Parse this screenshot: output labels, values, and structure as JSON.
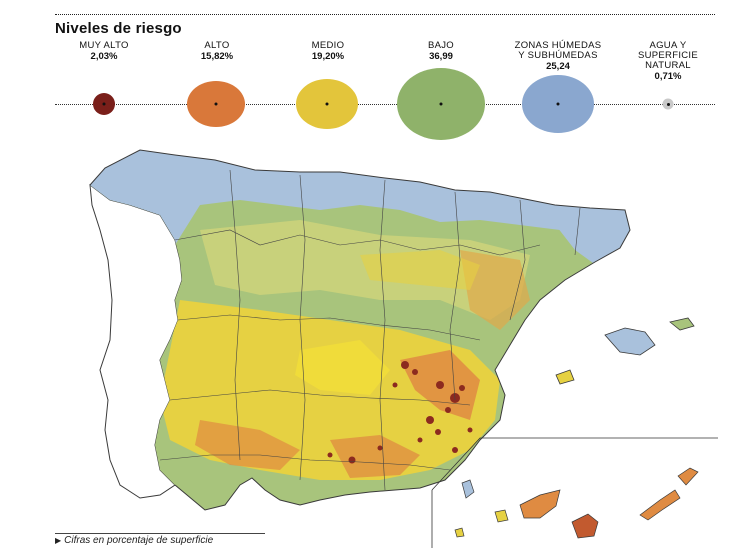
{
  "title": "Niveles de riesgo",
  "legend": [
    {
      "label": "MUY ALTO",
      "value": "2,03%",
      "color": "#7a1f1a"
    },
    {
      "label": "ALTO",
      "value": "15,82%",
      "color": "#d9783a"
    },
    {
      "label": "MEDIO",
      "value": "19,20%",
      "color": "#e3c53b"
    },
    {
      "label": "BAJO",
      "value": "36,99",
      "color": "#8fb26a"
    },
    {
      "label": "ZONAS HÚMEDAS\nY SUBHÚMEDAS",
      "value": "25,24",
      "color": "#8aa7cf"
    },
    {
      "label": "AGUA Y\nSUPERFICIE\nNATURAL",
      "value": "0,71%",
      "color": "#c9c9c9"
    }
  ],
  "footnote": "Cifras en porcentaje de superficie",
  "colors": {
    "sea_zone": "#a9c1dc",
    "portugal": "#ffffff",
    "low": "#a8c47c",
    "medium": "#e6d142",
    "high": "#df8b42",
    "very_high": "#8c2a1f",
    "border": "#3a3a3a"
  }
}
